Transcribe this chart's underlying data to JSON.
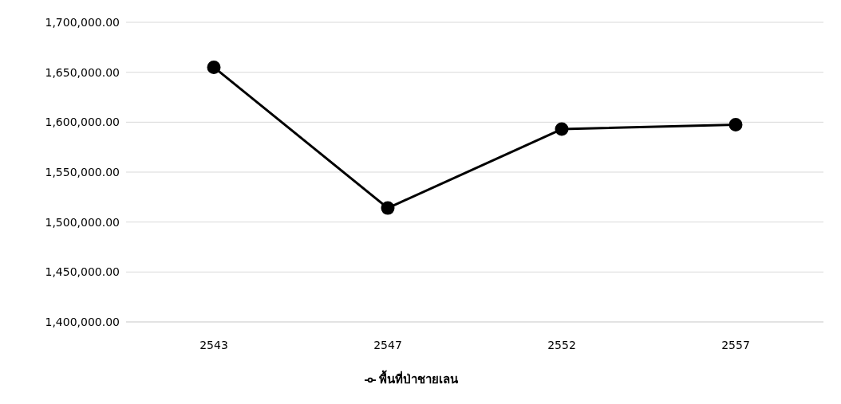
{
  "chart_data": {
    "type": "line",
    "categories": [
      "2543",
      "2547",
      "2552",
      "2557"
    ],
    "series": [
      {
        "name": "พื้นที่ป่าชายเลน",
        "color": "#000000",
        "values": [
          1655000,
          1514000,
          1593000,
          1597500
        ]
      }
    ],
    "ylim": [
      1400000,
      1700000
    ],
    "yticks": [
      {
        "value": 1400000,
        "label": "1,400,000.00"
      },
      {
        "value": 1450000,
        "label": "1,450,000.00"
      },
      {
        "value": 1500000,
        "label": "1,500,000.00"
      },
      {
        "value": 1550000,
        "label": "1,550,000.00"
      },
      {
        "value": 1600000,
        "label": "1,600,000.00"
      },
      {
        "value": 1650000,
        "label": "1,650,000.00"
      },
      {
        "value": 1700000,
        "label": "1,700,000.00"
      }
    ],
    "grid": "y",
    "legend": "bottom",
    "marker": "circle",
    "line_style": "solid"
  }
}
